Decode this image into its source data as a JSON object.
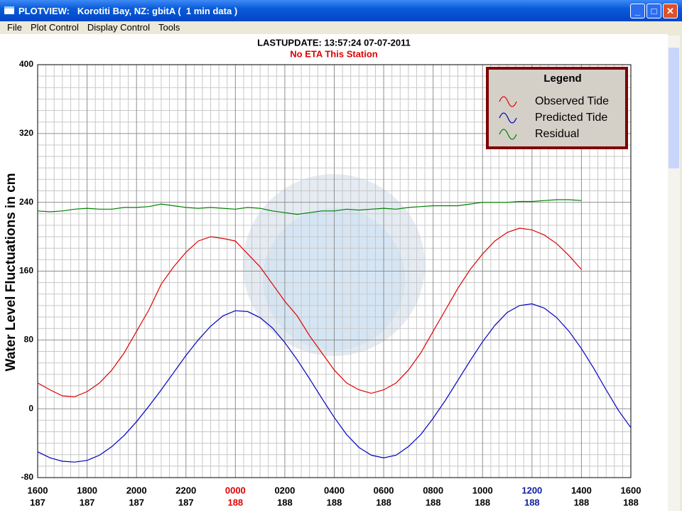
{
  "window": {
    "title": "PLOTVIEW:   Korotiti Bay, NZ: gbitA (  1 min data )",
    "menu": [
      "File",
      "Plot Control",
      "Display Control",
      "Tools"
    ]
  },
  "chart_data": {
    "type": "line",
    "title": "LASTUPDATE: 13:57:24  07-07-2011",
    "subtitle": "No ETA This Station",
    "ylabel": "Water Level Fluctuations in cm",
    "legend_title": "Legend",
    "legend": "upper right",
    "grid": true,
    "xlim": [
      0,
      24
    ],
    "ylim": [
      -80,
      400
    ],
    "yticks": [
      -80,
      0,
      80,
      160,
      240,
      320,
      400
    ],
    "xticks": [
      {
        "value": 0,
        "label": "1600"
      },
      {
        "value": 2,
        "label": "1800"
      },
      {
        "value": 4,
        "label": "2000"
      },
      {
        "value": 6,
        "label": "2200"
      },
      {
        "value": 8,
        "label": "0000"
      },
      {
        "value": 10,
        "label": "0200"
      },
      {
        "value": 12,
        "label": "0400"
      },
      {
        "value": 14,
        "label": "0600"
      },
      {
        "value": 16,
        "label": "0800"
      },
      {
        "value": 18,
        "label": "1000"
      },
      {
        "value": 20,
        "label": "1200"
      },
      {
        "value": 22,
        "label": "1400"
      },
      {
        "value": 24,
        "label": "1600"
      }
    ],
    "xtick_days": [
      "187",
      "187",
      "187",
      "187",
      "188",
      "188",
      "188",
      "188",
      "188",
      "188",
      "188",
      "188",
      "188"
    ],
    "xtick_colors": [
      "#000000",
      "#000000",
      "#000000",
      "#000000",
      "#e00000",
      "#000000",
      "#000000",
      "#000000",
      "#000000",
      "#000000",
      "#1020a0",
      "#000000",
      "#000000"
    ],
    "x": [
      0,
      0.5,
      1,
      1.5,
      2,
      2.5,
      3,
      3.5,
      4,
      4.5,
      5,
      5.5,
      6,
      6.5,
      7,
      7.5,
      8,
      8.5,
      9,
      9.5,
      10,
      10.5,
      11,
      11.5,
      12,
      12.5,
      13,
      13.5,
      14,
      14.5,
      15,
      15.5,
      16,
      16.5,
      17,
      17.5,
      18,
      18.5,
      19,
      19.5,
      20,
      20.5,
      21,
      21.5,
      22,
      22.5,
      23,
      23.5,
      24
    ],
    "series": [
      {
        "name": "Observed Tide",
        "color": "#e00000",
        "values": [
          30,
          22,
          15,
          14,
          20,
          30,
          45,
          65,
          90,
          115,
          145,
          165,
          182,
          195,
          200,
          198,
          195,
          180,
          165,
          145,
          125,
          108,
          85,
          65,
          45,
          30,
          22,
          18,
          22,
          30,
          45,
          65,
          90,
          115,
          140,
          162,
          180,
          195,
          205,
          210,
          208,
          202,
          192,
          178,
          162,
          null,
          null,
          null,
          null
        ]
      },
      {
        "name": "Predicted Tide",
        "color": "#0000c0",
        "values": [
          -50,
          -57,
          -61,
          -62,
          -60,
          -54,
          -44,
          -31,
          -15,
          3,
          22,
          42,
          62,
          80,
          96,
          108,
          114,
          113,
          106,
          94,
          77,
          57,
          35,
          12,
          -10,
          -30,
          -45,
          -54,
          -57,
          -54,
          -44,
          -30,
          -11,
          10,
          33,
          56,
          78,
          97,
          112,
          120,
          122,
          117,
          106,
          90,
          70,
          47,
          22,
          -2,
          -22
        ]
      },
      {
        "name": "Residual",
        "color": "#008000",
        "values": [
          230,
          229,
          230,
          232,
          233,
          232,
          232,
          234,
          234,
          235,
          238,
          236,
          234,
          233,
          234,
          233,
          232,
          234,
          233,
          230,
          228,
          226,
          228,
          230,
          230,
          232,
          231,
          232,
          233,
          232,
          234,
          235,
          236,
          236,
          236,
          238,
          240,
          240,
          240,
          241,
          241,
          242,
          243,
          243,
          242,
          null,
          null,
          null,
          null
        ]
      }
    ]
  }
}
